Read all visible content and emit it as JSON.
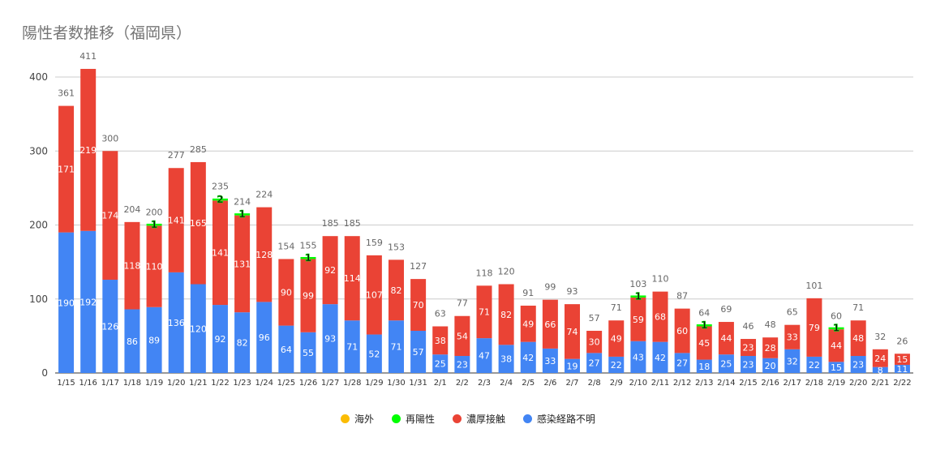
{
  "chart_data": {
    "type": "bar",
    "stacked": true,
    "title": "陽性者数推移（福岡県）",
    "xlabel": "",
    "ylabel": "",
    "ylim": [
      0,
      430
    ],
    "yticks": [
      0,
      100,
      200,
      300,
      400
    ],
    "grid": true,
    "legend_position": "bottom",
    "categories": [
      "1/15",
      "1/16",
      "1/17",
      "1/18",
      "1/19",
      "1/20",
      "1/21",
      "1/22",
      "1/23",
      "1/24",
      "1/25",
      "1/26",
      "1/27",
      "1/28",
      "1/29",
      "1/30",
      "1/31",
      "2/1",
      "2/2",
      "2/3",
      "2/4",
      "2/5",
      "2/6",
      "2/7",
      "2/8",
      "2/9",
      "2/10",
      "2/11",
      "2/12",
      "2/13",
      "2/14",
      "2/15",
      "2/16",
      "2/17",
      "2/18",
      "2/19",
      "2/20",
      "2/21",
      "2/22"
    ],
    "totals": [
      361,
      411,
      300,
      204,
      200,
      277,
      285,
      235,
      214,
      224,
      154,
      155,
      185,
      185,
      159,
      153,
      127,
      63,
      77,
      118,
      120,
      91,
      99,
      93,
      57,
      71,
      103,
      110,
      87,
      64,
      69,
      46,
      48,
      65,
      101,
      60,
      71,
      32,
      26
    ],
    "series": [
      {
        "name": "感染経路不明",
        "color": "#4285f4",
        "values": [
          190,
          192,
          126,
          86,
          89,
          136,
          120,
          92,
          82,
          96,
          64,
          55,
          93,
          71,
          52,
          71,
          57,
          25,
          23,
          47,
          38,
          42,
          33,
          19,
          27,
          22,
          43,
          42,
          27,
          18,
          25,
          23,
          20,
          32,
          22,
          15,
          23,
          8,
          11
        ]
      },
      {
        "name": "濃厚接触",
        "color": "#ea4335",
        "values": [
          171,
          219,
          174,
          118,
          110,
          141,
          165,
          141,
          131,
          128,
          90,
          99,
          92,
          114,
          107,
          82,
          70,
          38,
          54,
          71,
          82,
          49,
          66,
          74,
          30,
          49,
          59,
          68,
          60,
          45,
          44,
          23,
          28,
          33,
          79,
          44,
          48,
          24,
          15
        ]
      },
      {
        "name": "再陽性",
        "color": "#00ff00",
        "values": [
          0,
          0,
          0,
          0,
          1,
          0,
          0,
          2,
          1,
          0,
          0,
          1,
          0,
          0,
          0,
          0,
          0,
          0,
          0,
          0,
          0,
          0,
          0,
          0,
          0,
          0,
          1,
          0,
          0,
          1,
          0,
          0,
          0,
          0,
          0,
          1,
          0,
          0,
          0
        ]
      },
      {
        "name": "海外",
        "color": "#fbbc04",
        "values": [
          0,
          0,
          0,
          0,
          0,
          0,
          0,
          0,
          0,
          0,
          0,
          0,
          0,
          0,
          0,
          0,
          0,
          0,
          0,
          0,
          0,
          0,
          0,
          0,
          0,
          0,
          0,
          0,
          0,
          0,
          0,
          0,
          0,
          0,
          0,
          0,
          0,
          0,
          0
        ]
      }
    ],
    "legend": [
      "海外",
      "再陽性",
      "濃厚接触",
      "感染経路不明"
    ]
  }
}
